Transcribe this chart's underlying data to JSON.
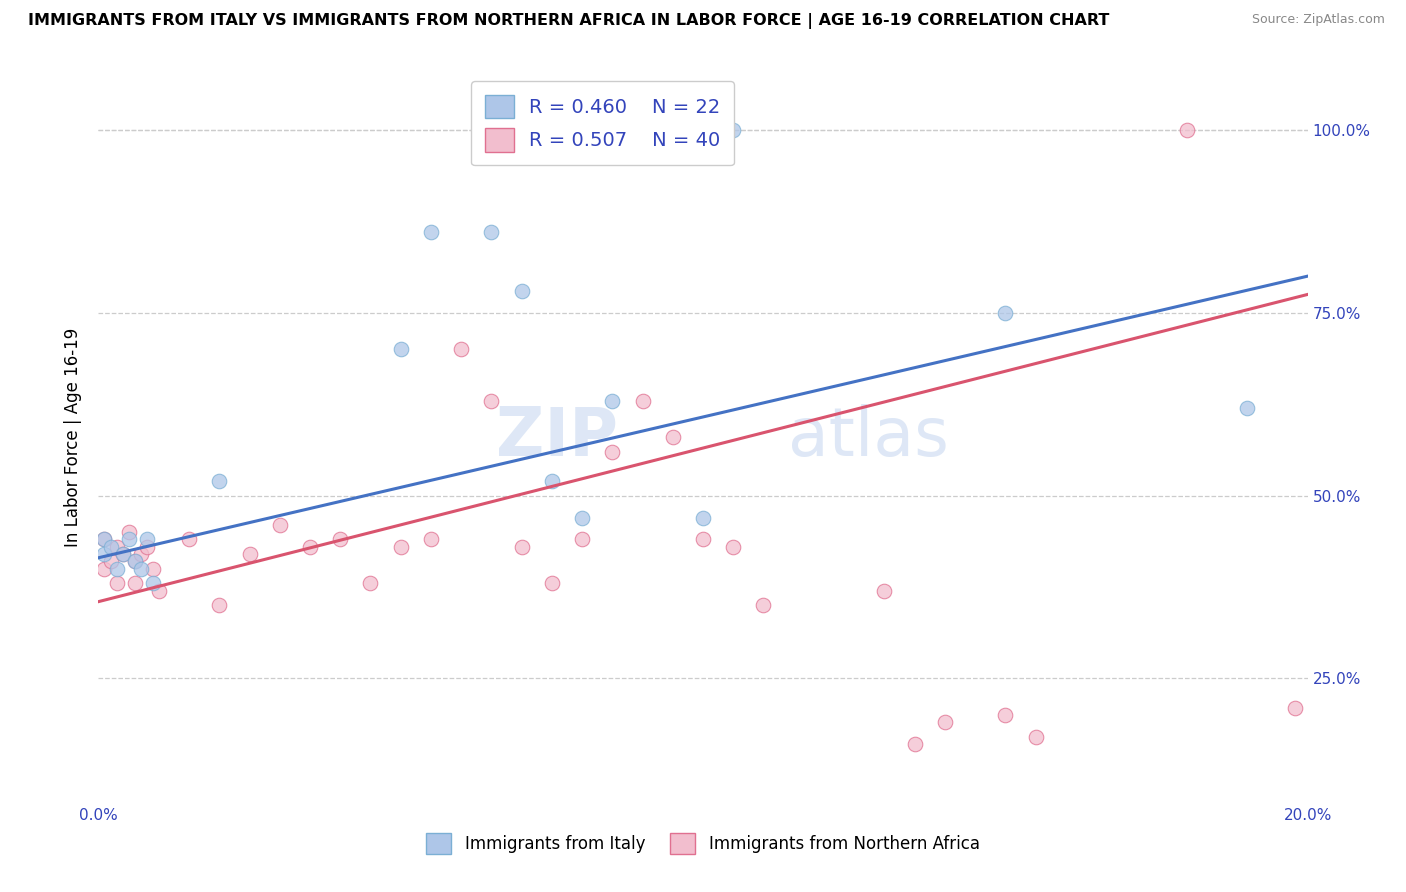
{
  "title": "IMMIGRANTS FROM ITALY VS IMMIGRANTS FROM NORTHERN AFRICA IN LABOR FORCE | AGE 16-19 CORRELATION CHART",
  "source": "Source: ZipAtlas.com",
  "ylabel": "In Labor Force | Age 16-19",
  "x_min": 0.0,
  "x_max": 0.2,
  "y_min": 0.08,
  "y_max": 1.08,
  "x_ticks": [
    0.0,
    0.05,
    0.1,
    0.15,
    0.2
  ],
  "x_tick_labels": [
    "0.0%",
    "",
    "",
    "",
    "20.0%"
  ],
  "y_tick_labels": [
    "25.0%",
    "50.0%",
    "75.0%",
    "100.0%"
  ],
  "y_ticks": [
    0.25,
    0.5,
    0.75,
    1.0
  ],
  "italy_color": "#aec6e8",
  "italy_edge_color": "#7bafd4",
  "nafrica_color": "#f2bece",
  "nafrica_edge_color": "#e07090",
  "line_italy_color": "#4472c4",
  "line_nafrica_color": "#d9546e",
  "legend_R_italy": "0.460",
  "legend_N_italy": "22",
  "legend_R_nafrica": "0.507",
  "legend_N_nafrica": "40",
  "watermark": "ZIPatlas",
  "italy_x": [
    0.001,
    0.001,
    0.002,
    0.003,
    0.004,
    0.005,
    0.006,
    0.007,
    0.008,
    0.009,
    0.02,
    0.05,
    0.055,
    0.065,
    0.07,
    0.075,
    0.08,
    0.085,
    0.1,
    0.105,
    0.15,
    0.19
  ],
  "italy_y": [
    0.44,
    0.42,
    0.43,
    0.4,
    0.42,
    0.44,
    0.41,
    0.4,
    0.44,
    0.38,
    0.52,
    0.7,
    0.86,
    0.86,
    0.78,
    0.52,
    0.47,
    0.63,
    0.47,
    1.0,
    0.75,
    0.62
  ],
  "nafrica_x": [
    0.001,
    0.001,
    0.002,
    0.003,
    0.003,
    0.004,
    0.005,
    0.006,
    0.006,
    0.007,
    0.008,
    0.009,
    0.01,
    0.015,
    0.02,
    0.025,
    0.03,
    0.035,
    0.04,
    0.045,
    0.05,
    0.055,
    0.06,
    0.065,
    0.07,
    0.075,
    0.08,
    0.085,
    0.09,
    0.095,
    0.1,
    0.105,
    0.11,
    0.13,
    0.135,
    0.14,
    0.15,
    0.155,
    0.18,
    0.198
  ],
  "nafrica_y": [
    0.44,
    0.4,
    0.41,
    0.43,
    0.38,
    0.42,
    0.45,
    0.41,
    0.38,
    0.42,
    0.43,
    0.4,
    0.37,
    0.44,
    0.35,
    0.42,
    0.46,
    0.43,
    0.44,
    0.38,
    0.43,
    0.44,
    0.7,
    0.63,
    0.43,
    0.38,
    0.44,
    0.56,
    0.63,
    0.58,
    0.44,
    0.43,
    0.35,
    0.37,
    0.16,
    0.19,
    0.2,
    0.17,
    1.0,
    0.21
  ],
  "line_italy_x0": 0.0,
  "line_italy_y0": 0.415,
  "line_italy_x1": 0.2,
  "line_italy_y1": 0.8,
  "line_nafrica_x0": 0.0,
  "line_nafrica_y0": 0.355,
  "line_nafrica_x1": 0.2,
  "line_nafrica_y1": 0.775,
  "marker_size": 110
}
